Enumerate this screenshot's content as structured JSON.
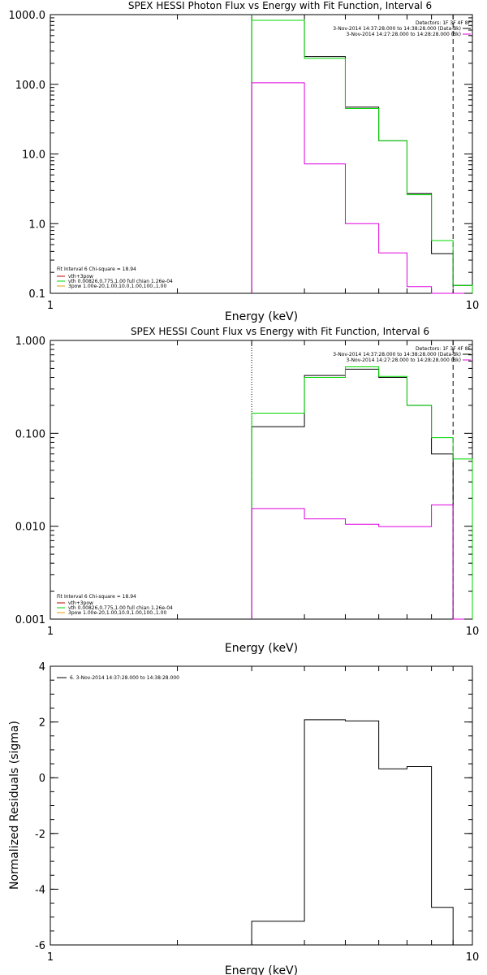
{
  "panel_colors": {
    "black": "#000000",
    "green": "#00d800",
    "magenta": "#e000e0",
    "red": "#c00000",
    "orange": "#e0a000"
  },
  "chart_data": [
    {
      "type": "line",
      "title": "SPEX HESSI Photon Flux vs Energy with Fit Function, Interval 6",
      "xlabel": "Energy (keV)",
      "ylabel": "",
      "x_scale": "log",
      "y_scale": "log",
      "xlim": [
        1,
        10
      ],
      "ylim": [
        0.1,
        1000
      ],
      "yticks": [
        "0.1",
        "1.0",
        "10.0",
        "100.0",
        "1000.0"
      ],
      "xticks": [
        "1",
        "10"
      ],
      "vline_solid_x": 3.0,
      "vline_dashed_x": 9.0,
      "legend_right": {
        "header": "Detectors: 1F 3F 4F 8F",
        "line1": "3-Nov-2014 14:37:28.000 to 14:38:28.000 (Data-Bk)",
        "line2": "3-Nov-2014 14:27:28.000 to 14:28:28.000 (Bk)"
      },
      "legend_left": {
        "line0": "Fit Interval 6   Chi-square = 18.94",
        "line1": "vth+3pow",
        "line2": "vth 0.00826,0.775,1.00   full chian 1.26e-04",
        "line3": "3pow 1.00e-20,1.00,10.0,1.00,100.,1.00"
      },
      "edges": [
        3.0,
        4.0,
        5.0,
        6.0,
        7.0,
        8.0,
        9.0,
        10.0
      ],
      "series": [
        {
          "color": "black",
          "values": [
            830,
            250,
            47,
            15.5,
            2.7,
            0.37,
            0.13
          ]
        },
        {
          "color": "green",
          "values": [
            830,
            235,
            45,
            15.5,
            2.6,
            0.57,
            0.13
          ]
        },
        {
          "color": "magenta",
          "values": [
            105,
            7.2,
            1.0,
            0.38,
            0.125,
            0.1,
            0.1
          ]
        }
      ]
    },
    {
      "type": "line",
      "title": "SPEX HESSI Count Flux vs Energy with Fit Function, Interval 6",
      "xlabel": "Energy (keV)",
      "ylabel": "",
      "x_scale": "log",
      "y_scale": "log",
      "xlim": [
        1,
        10
      ],
      "ylim": [
        0.001,
        1
      ],
      "yticks": [
        "0.001",
        "0.010",
        "0.100",
        "1.000"
      ],
      "xticks": [
        "1",
        "10"
      ],
      "vline_dotted_x": 3.0,
      "vline_dashed_x": 9.0,
      "legend_right": {
        "header": "Detectors: 1F 3F 4F 8F",
        "line1": "3-Nov-2014 14:37:28.000 to 14:38:28.000 (Data-Bk)",
        "line2": "3-Nov-2014 14:27:28.000 to 14:28:28.000 (Bk)"
      },
      "legend_left": {
        "line0": "Fit Interval 6   Chi-square = 18.94",
        "line1": "vth+3pow",
        "line2": "vth 0.00826,0.775,1.00   full chian 1.26e-04",
        "line3": "3pow 1.00e-20,1.00,10.0,1.00,100.,1.00"
      },
      "edges": [
        3.0,
        4.0,
        5.0,
        6.0,
        7.0,
        8.0,
        9.0,
        10.0
      ],
      "series": [
        {
          "color": "black",
          "values": [
            0.118,
            0.42,
            0.49,
            0.4,
            0.2,
            0.06,
            0.001
          ]
        },
        {
          "color": "green",
          "values": [
            0.165,
            0.4,
            0.52,
            0.41,
            0.2,
            0.09,
            0.053
          ]
        },
        {
          "color": "magenta",
          "values": [
            0.0155,
            0.012,
            0.0105,
            0.0099,
            0.0099,
            0.017,
            0.001
          ]
        }
      ]
    },
    {
      "type": "line",
      "title": "",
      "xlabel": "Energy (keV)",
      "ylabel": "Normalized Residuals (sigma)",
      "x_scale": "log",
      "y_scale": "linear",
      "xlim": [
        1,
        10
      ],
      "ylim": [
        -6,
        4
      ],
      "yticks": [
        "-6",
        "-4",
        "-2",
        "0",
        "2",
        "4"
      ],
      "xticks": [
        "1",
        "10"
      ],
      "legend_left": {
        "line0": "6. 3-Nov-2014 14:37:28.000 to 14:38:28.000"
      },
      "edges": [
        3.0,
        4.0,
        5.0,
        6.0,
        7.0,
        8.0,
        9.0
      ],
      "series": [
        {
          "color": "black",
          "values": [
            -5.15,
            2.08,
            2.04,
            0.32,
            0.4,
            -4.65
          ]
        }
      ]
    }
  ]
}
